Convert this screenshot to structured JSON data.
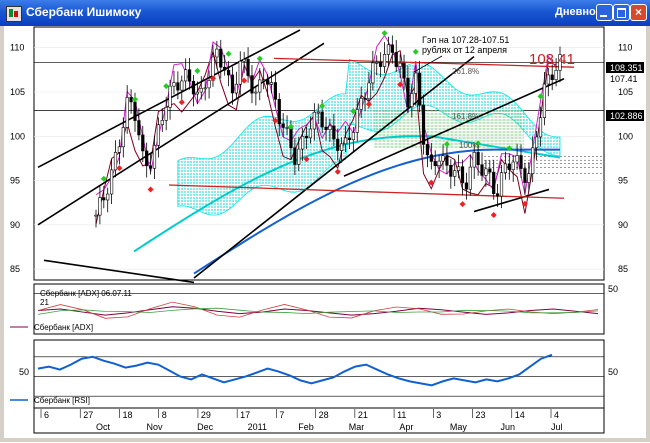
{
  "window": {
    "title": "Сбербанк Ишимоку",
    "timeframe": "Дневной",
    "close_glyph": "×"
  },
  "colors": {
    "candle_up": "#ffffff",
    "candle_down": "#000000",
    "up_marker": "#22cc22",
    "down_marker": "#ee2222",
    "cloud": "#00e5e5",
    "cloud_green": "#66cc66",
    "kijun": "#800020",
    "tenkan": "#cc22cc",
    "ma_cyan": "#00cccc",
    "ma_blue": "#1560d0",
    "channel": "#000000",
    "resistance": "#cc2222",
    "adx": "#800040",
    "rsi": "#1060d0"
  },
  "annotation": {
    "line1": "Гэп на 107.28-107.51",
    "line2": "рублях от 12 апреля"
  },
  "price_labels": {
    "big": "108.41",
    "right1": "108.351",
    "right2": "107.41",
    "right3": "102.886"
  },
  "fib_labels": {
    "f1": "261.8%",
    "f2": "161.8%",
    "f3": "100%"
  },
  "panels": {
    "adx": {
      "legend": "Сбербанк [ADX] 06.07.11",
      "legend2": "21",
      "name": "Сбербанк [ADX]",
      "yticks": [
        50
      ]
    },
    "rsi": {
      "name": "Сбербанк [RSI]",
      "yticks": [
        50
      ]
    }
  },
  "xaxis": {
    "day_labels": [
      "6",
      "27",
      "18",
      "8",
      "29",
      "17",
      "7",
      "28",
      "21",
      "11",
      "3",
      "23",
      "14",
      "4"
    ],
    "month_labels": [
      "Oct",
      "Nov",
      "Dec",
      "2011",
      "Feb",
      "Mar",
      "Apr",
      "May",
      "Jun",
      "Jul"
    ]
  },
  "chart_data": [
    {
      "type": "candlestick",
      "title": "Сбербанк Ишимоку",
      "ylim": [
        84,
        112
      ],
      "yticks": [
        85,
        90,
        95,
        100,
        105,
        110
      ],
      "close_series": [
        90.5,
        93,
        96.5,
        100,
        103.5,
        102,
        97,
        98,
        101,
        104,
        106,
        107.5,
        106,
        103.5,
        106.5,
        110,
        108.5,
        104,
        108,
        107.5,
        105,
        107,
        104.5,
        102,
        100.5,
        97.5,
        99,
        101.5,
        103,
        101,
        99,
        98,
        101,
        104,
        106,
        107.5,
        109,
        110.5,
        108,
        103.5,
        106,
        100,
        96.5,
        98,
        95,
        97,
        94.5,
        97.5,
        96,
        95.5,
        94,
        96.5,
        97,
        96,
        95.5,
        100.5,
        105,
        106.5,
        108.41
      ],
      "annotations": [
        "Гэп на 107.28-107.51 рублях от 12 апреля",
        "108.41"
      ],
      "labeled_levels": [
        108.351,
        107.41,
        102.886
      ]
    },
    {
      "type": "line",
      "title": "Сбербанк [ADX]",
      "ylim": [
        0,
        60
      ],
      "yticks": [
        50
      ],
      "series": [
        {
          "name": "Сбербанк [ADX]",
          "values": [
            28,
            30,
            26,
            22,
            25,
            29,
            33,
            31,
            27,
            24,
            26,
            30,
            28,
            25,
            22,
            24,
            27,
            31,
            29,
            26,
            23,
            25,
            28,
            30,
            27,
            24
          ]
        }
      ]
    },
    {
      "type": "line",
      "title": "Сбербанк [RSI]",
      "ylim": [
        20,
        85
      ],
      "yticks": [
        50
      ],
      "series": [
        {
          "name": "Сбербанк [RSI]",
          "values": [
            58,
            60,
            57,
            62,
            68,
            70,
            66,
            63,
            59,
            61,
            64,
            62,
            56,
            50,
            47,
            52,
            48,
            44,
            47,
            50,
            54,
            58,
            55,
            51,
            46,
            43,
            46,
            49,
            55,
            60,
            62,
            57,
            52,
            48,
            45,
            43,
            41,
            45,
            48,
            46,
            44,
            47,
            45,
            48,
            52,
            60,
            68,
            72
          ]
        }
      ]
    }
  ]
}
